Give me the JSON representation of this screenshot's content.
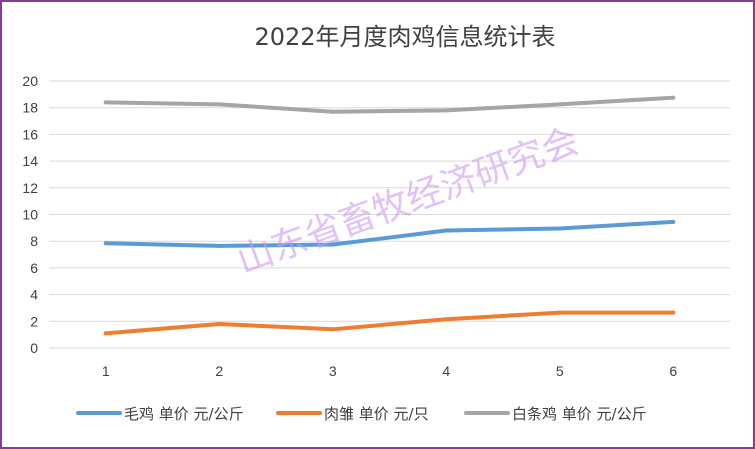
{
  "chart_data": {
    "type": "line",
    "title": "2022年月度肉鸡信息统计表",
    "xlabel": "",
    "ylabel": "",
    "categories": [
      "1",
      "2",
      "3",
      "4",
      "5",
      "6"
    ],
    "ylim": [
      0,
      20
    ],
    "y_ticks": [
      "0",
      "2",
      "4",
      "6",
      "8",
      "10",
      "12",
      "14",
      "16",
      "18",
      "20"
    ],
    "grid": true,
    "legend_position": "bottom",
    "series": [
      {
        "name": "毛鸡 单价 元/公斤",
        "color": "#5b9bd5",
        "values": [
          7.85,
          7.65,
          7.75,
          8.8,
          8.95,
          9.45
        ]
      },
      {
        "name": "肉雏 单价 元/只",
        "color": "#ed7d31",
        "values": [
          1.1,
          1.8,
          1.4,
          2.15,
          2.65,
          2.65
        ]
      },
      {
        "name": "白条鸡 单价 元/公斤",
        "color": "#a5a5a5",
        "values": [
          18.4,
          18.25,
          17.7,
          17.8,
          18.25,
          18.75
        ]
      }
    ],
    "watermark": "山东省畜牧经济研究会",
    "colors": {
      "border": "#7f3f98",
      "grid": "#d9d9d9",
      "text": "#404040",
      "watermark": "#cc99ee"
    }
  }
}
